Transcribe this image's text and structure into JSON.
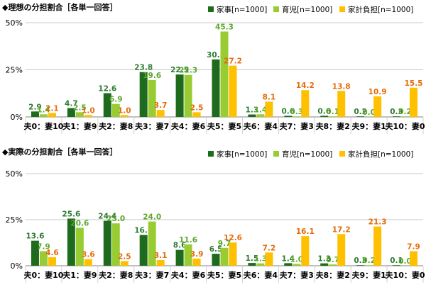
{
  "chart_data": [
    {
      "type": "bar",
      "title": "◆理想の分担割合［各単一回答］",
      "categories": [
        "夫0：妻10",
        "夫1：妻9",
        "夫2：妻8",
        "夫3：妻7",
        "夫4：妻6",
        "夫5：妻5",
        "夫6：妻4",
        "夫7：妻3",
        "夫8：妻2",
        "夫9：妻1",
        "夫10：妻0"
      ],
      "ylim": [
        0,
        50
      ],
      "yticks": [
        "0%",
        "25%",
        "50%"
      ],
      "ytick_values": [
        0,
        25,
        50
      ],
      "legend_position": "top-right",
      "series": [
        {
          "name": "家事[n=1000]",
          "color": "#1e6b1e",
          "label_color": "#2e7d32",
          "values": [
            2.9,
            4.7,
            12.6,
            23.8,
            22.5,
            30.5,
            1.3,
            0.6,
            0.6,
            0.2,
            0.3
          ],
          "labels": [
            "2.9",
            "4.7",
            "12.6",
            "23.8",
            "22.5",
            "30.5",
            "1.3",
            "0.6",
            "0.6",
            "0.2",
            "0.3"
          ]
        },
        {
          "name": "育児[n=1000]",
          "color": "#99cc33",
          "label_color": "#5aa82a",
          "values": [
            1.4,
            2.5,
            6.9,
            19.6,
            22.3,
            45.3,
            1.4,
            0.3,
            0.1,
            0.0,
            0.2
          ],
          "labels": [
            "1.4",
            "2.5",
            "6.9",
            "19.6",
            "22.3",
            "45.3",
            "1.4",
            "0.3",
            "0.1",
            "0.0",
            "0.2"
          ]
        },
        {
          "name": "家計負担[n=1000]",
          "color": "#ffc000",
          "label_color": "#e46c0a",
          "values": [
            2.1,
            1.0,
            1.0,
            3.7,
            2.5,
            27.2,
            8.1,
            14.2,
            13.8,
            10.9,
            15.5
          ],
          "labels": [
            "2.1",
            "1.0",
            "1.0",
            "3.7",
            "2.5",
            "27.2",
            "8.1",
            "14.2",
            "13.8",
            "10.9",
            "15.5"
          ]
        }
      ]
    },
    {
      "type": "bar",
      "title": "◆実際の分担割合［各単一回答］",
      "categories": [
        "夫0：妻10",
        "夫1：妻9",
        "夫2：妻8",
        "夫3：妻7",
        "夫4：妻6",
        "夫5：妻5",
        "夫6：妻4",
        "夫7：妻3",
        "夫8：妻2",
        "夫9：妻1",
        "夫10：妻0"
      ],
      "ylim": [
        0,
        50
      ],
      "yticks": [
        "0%",
        "25%",
        "50%"
      ],
      "ytick_values": [
        0,
        25,
        50
      ],
      "legend_position": "top-right",
      "series": [
        {
          "name": "家事[n=1000]",
          "color": "#1e6b1e",
          "label_color": "#2e7d32",
          "values": [
            13.6,
            25.6,
            24.4,
            16.7,
            8.6,
            6.5,
            1.5,
            1.4,
            1.3,
            0.3,
            0.1
          ],
          "labels": [
            "13.6",
            "25.6",
            "24.4",
            "16.7",
            "8.6",
            "6.5",
            "1.5",
            "1.4",
            "1.3",
            "0.3",
            "0.1"
          ]
        },
        {
          "name": "育児[n=1000]",
          "color": "#99cc33",
          "label_color": "#5aa82a",
          "values": [
            7.9,
            20.6,
            23.0,
            24.0,
            11.6,
            9.7,
            1.3,
            1.0,
            0.7,
            0.2,
            0.0
          ],
          "labels": [
            "7.9",
            "20.6",
            "23.0",
            "24.0",
            "11.6",
            "9.7",
            "1.3",
            "1.0",
            "0.7",
            "0.2",
            "0.0"
          ]
        },
        {
          "name": "家計負担[n=1000]",
          "color": "#ffc000",
          "label_color": "#e46c0a",
          "values": [
            4.6,
            3.6,
            2.5,
            3.1,
            3.9,
            12.6,
            7.2,
            16.1,
            17.2,
            21.3,
            7.9
          ],
          "labels": [
            "4.6",
            "3.6",
            "2.5",
            "3.1",
            "3.9",
            "12.6",
            "7.2",
            "16.1",
            "17.2",
            "21.3",
            "7.9"
          ]
        }
      ]
    }
  ]
}
